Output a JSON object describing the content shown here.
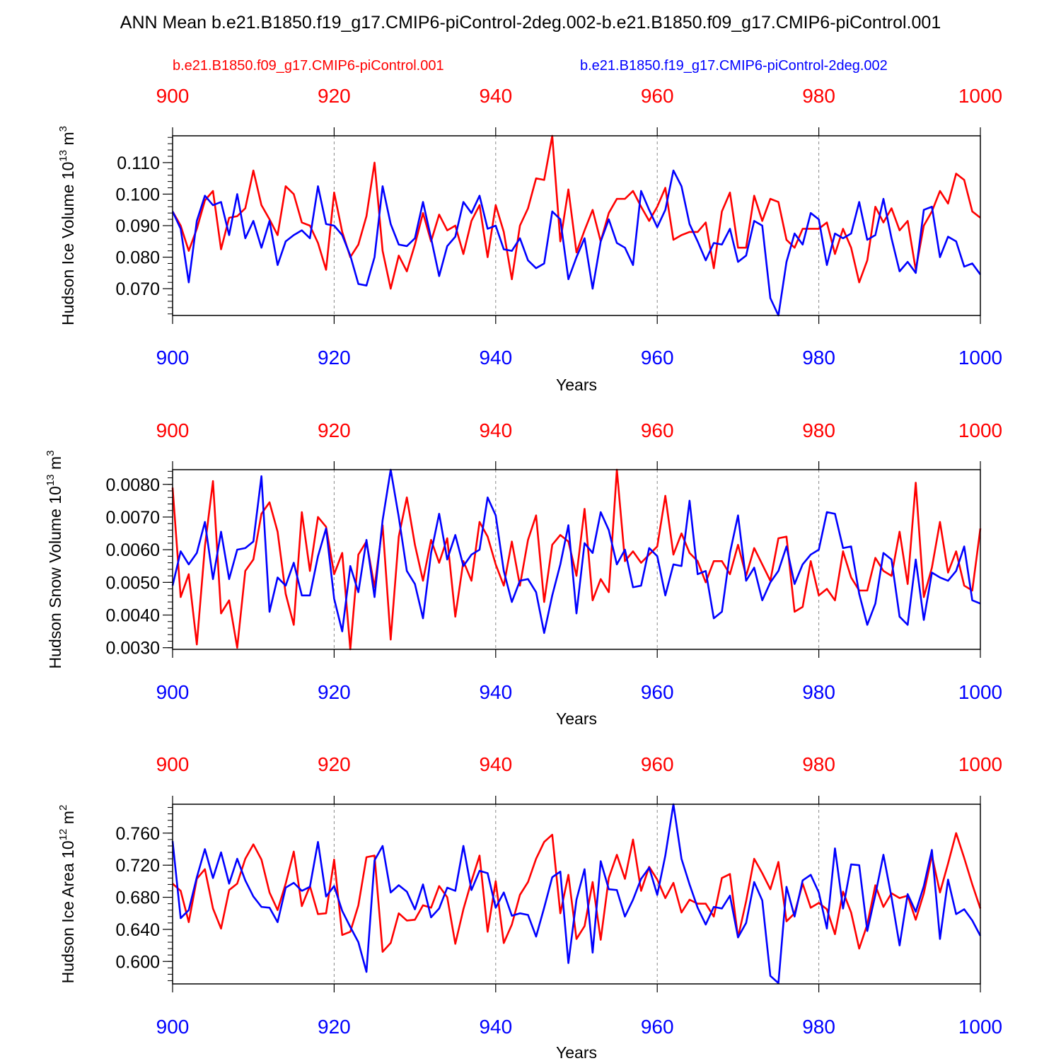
{
  "title": "ANN Mean b.e21.B1850.f19_g17.CMIP6-piControl-2deg.002-b.e21.B1850.f09_g17.CMIP6-piControl.001",
  "colors": {
    "red": "#ff0000",
    "blue": "#0000ff",
    "axis": "#000000",
    "grid": "#888888"
  },
  "legend": [
    {
      "label": "b.e21.B1850.f09_g17.CMIP6-piControl.001",
      "color": "#ff0000"
    },
    {
      "label": "b.e21.B1850.f19_g17.CMIP6-piControl-2deg.002",
      "color": "#0000ff"
    }
  ],
  "chart_data": [
    {
      "type": "line",
      "ylabel": "Hudson Ice Volume 10",
      "yexp": "13",
      "yunit": " m",
      "yunitexp": "3",
      "xlabel": "Years",
      "xlim": [
        900,
        1000
      ],
      "ylim": [
        0.0615,
        0.1185
      ],
      "yticks": [
        0.07,
        0.08,
        0.09,
        0.1,
        0.11
      ],
      "ytick_labels": [
        "0.070",
        "0.080",
        "0.090",
        "0.100",
        "0.110"
      ],
      "xticks": [
        900,
        920,
        940,
        960,
        980,
        1000
      ],
      "xtick_labels": [
        "900",
        "920",
        "940",
        "960",
        "980",
        "1000"
      ],
      "series": [
        {
          "name": "b.e21.B1850.f09_g17.CMIP6-piControl.001",
          "color": "#ff0000",
          "x_start": 900,
          "values": [
            0.0945,
            0.09,
            0.082,
            0.089,
            0.098,
            0.101,
            0.0825,
            0.0925,
            0.093,
            0.0955,
            0.1075,
            0.0965,
            0.092,
            0.087,
            0.1025,
            0.1,
            0.091,
            0.09,
            0.0845,
            0.076,
            0.1005,
            0.088,
            0.08,
            0.084,
            0.093,
            0.11,
            0.082,
            0.07,
            0.0805,
            0.0755,
            0.084,
            0.094,
            0.085,
            0.0935,
            0.0885,
            0.09,
            0.081,
            0.0915,
            0.0965,
            0.08,
            0.0965,
            0.088,
            0.073,
            0.09,
            0.0955,
            0.105,
            0.1045,
            0.1185,
            0.085,
            0.1015,
            0.0815,
            0.0885,
            0.095,
            0.085,
            0.094,
            0.0985,
            0.0985,
            0.101,
            0.096,
            0.0915,
            0.096,
            0.102,
            0.0855,
            0.087,
            0.088,
            0.088,
            0.091,
            0.0765,
            0.0945,
            0.1005,
            0.083,
            0.083,
            0.0995,
            0.0915,
            0.0985,
            0.0975,
            0.0855,
            0.083,
            0.089,
            0.089,
            0.089,
            0.091,
            0.081,
            0.089,
            0.083,
            0.072,
            0.079,
            0.096,
            0.091,
            0.0955,
            0.0885,
            0.0915,
            0.076,
            0.09,
            0.0945,
            0.101,
            0.097,
            0.1065,
            0.1045,
            0.0945,
            0.0925
          ]
        },
        {
          "name": "b.e21.B1850.f19_g17.CMIP6-piControl-2deg.002",
          "color": "#0000ff",
          "x_start": 900,
          "values": [
            0.0945,
            0.089,
            0.072,
            0.0915,
            0.0995,
            0.0965,
            0.0975,
            0.087,
            0.1,
            0.086,
            0.0915,
            0.083,
            0.0915,
            0.0775,
            0.085,
            0.087,
            0.0885,
            0.086,
            0.1025,
            0.0905,
            0.09,
            0.087,
            0.0805,
            0.0715,
            0.071,
            0.08,
            0.1025,
            0.0905,
            0.084,
            0.0835,
            0.086,
            0.0975,
            0.086,
            0.074,
            0.0835,
            0.0865,
            0.0975,
            0.094,
            0.0995,
            0.089,
            0.09,
            0.0825,
            0.082,
            0.086,
            0.079,
            0.0765,
            0.078,
            0.0945,
            0.092,
            0.073,
            0.08,
            0.086,
            0.07,
            0.085,
            0.092,
            0.0845,
            0.083,
            0.0775,
            0.101,
            0.095,
            0.0895,
            0.095,
            0.1075,
            0.1025,
            0.0905,
            0.085,
            0.079,
            0.0845,
            0.084,
            0.089,
            0.0785,
            0.0805,
            0.0915,
            0.09,
            0.067,
            0.0615,
            0.0785,
            0.0875,
            0.084,
            0.094,
            0.092,
            0.0775,
            0.0875,
            0.086,
            0.0875,
            0.0975,
            0.0855,
            0.087,
            0.0985,
            0.086,
            0.0755,
            0.0785,
            0.075,
            0.095,
            0.096,
            0.08,
            0.0865,
            0.085,
            0.077,
            0.078,
            0.0745
          ]
        }
      ]
    },
    {
      "type": "line",
      "ylabel": "Hudson Snow Volume 10",
      "yexp": "13",
      "yunit": " m",
      "yunitexp": "3",
      "xlabel": "Years",
      "xlim": [
        900,
        1000
      ],
      "ylim": [
        0.00295,
        0.00845
      ],
      "yticks": [
        0.003,
        0.004,
        0.005,
        0.006,
        0.007,
        0.008
      ],
      "ytick_labels": [
        "0.0030",
        "0.0040",
        "0.0050",
        "0.0060",
        "0.0070",
        "0.0080"
      ],
      "xticks": [
        900,
        920,
        940,
        960,
        980,
        1000
      ],
      "xtick_labels": [
        "900",
        "920",
        "940",
        "960",
        "980",
        "1000"
      ],
      "series": [
        {
          "name": "b.e21.B1850.f09_g17.CMIP6-piControl.001",
          "color": "#ff0000",
          "x_start": 900,
          "values": [
            0.0079,
            0.00455,
            0.00525,
            0.0031,
            0.0061,
            0.0081,
            0.00405,
            0.00445,
            0.003,
            0.00535,
            0.0057,
            0.0071,
            0.00745,
            0.00655,
            0.00465,
            0.0037,
            0.00715,
            0.00535,
            0.007,
            0.0067,
            0.00525,
            0.0059,
            0.00295,
            0.00585,
            0.00625,
            0.00485,
            0.00675,
            0.00325,
            0.0064,
            0.0076,
            0.00615,
            0.00505,
            0.0063,
            0.0056,
            0.00635,
            0.00395,
            0.00565,
            0.00505,
            0.00685,
            0.0064,
            0.00555,
            0.0049,
            0.00625,
            0.0049,
            0.0063,
            0.00705,
            0.0044,
            0.00615,
            0.00645,
            0.00625,
            0.0052,
            0.00725,
            0.00445,
            0.0051,
            0.0047,
            0.00845,
            0.00565,
            0.00595,
            0.0056,
            0.00585,
            0.0061,
            0.00765,
            0.00585,
            0.0065,
            0.0059,
            0.00565,
            0.005,
            0.00565,
            0.00565,
            0.00525,
            0.00615,
            0.0052,
            0.00605,
            0.00555,
            0.00505,
            0.00635,
            0.0064,
            0.0041,
            0.00425,
            0.00565,
            0.0046,
            0.0048,
            0.00445,
            0.00595,
            0.00515,
            0.00475,
            0.00475,
            0.00575,
            0.00535,
            0.0052,
            0.00655,
            0.00495,
            0.00805,
            0.00455,
            0.00545,
            0.00685,
            0.0053,
            0.00595,
            0.0049,
            0.00475,
            0.00665
          ]
        },
        {
          "name": "b.e21.B1850.f19_g17.CMIP6-piControl-2deg.002",
          "color": "#0000ff",
          "x_start": 900,
          "values": [
            0.0049,
            0.00595,
            0.00555,
            0.0059,
            0.00685,
            0.0051,
            0.00655,
            0.0051,
            0.006,
            0.00605,
            0.00625,
            0.00825,
            0.0041,
            0.00515,
            0.0049,
            0.0056,
            0.0046,
            0.0046,
            0.0058,
            0.00665,
            0.0045,
            0.0035,
            0.0055,
            0.0047,
            0.0063,
            0.00455,
            0.0069,
            0.00845,
            0.007,
            0.00535,
            0.00495,
            0.0039,
            0.0059,
            0.0071,
            0.0057,
            0.00645,
            0.0055,
            0.00585,
            0.006,
            0.0076,
            0.00705,
            0.00535,
            0.0044,
            0.00505,
            0.0051,
            0.0047,
            0.00345,
            0.0046,
            0.00555,
            0.00675,
            0.00405,
            0.0062,
            0.0059,
            0.00715,
            0.0066,
            0.00555,
            0.006,
            0.00485,
            0.0049,
            0.00605,
            0.0058,
            0.0046,
            0.00555,
            0.0055,
            0.0075,
            0.00525,
            0.00535,
            0.0039,
            0.0041,
            0.0059,
            0.00705,
            0.00505,
            0.00545,
            0.00445,
            0.005,
            0.00535,
            0.0061,
            0.00495,
            0.00555,
            0.00585,
            0.006,
            0.00715,
            0.0071,
            0.00605,
            0.0061,
            0.00465,
            0.0037,
            0.00435,
            0.0059,
            0.0057,
            0.00395,
            0.0037,
            0.0057,
            0.00385,
            0.0053,
            0.00515,
            0.00505,
            0.00535,
            0.0061,
            0.00445,
            0.00435
          ]
        }
      ]
    },
    {
      "type": "line",
      "ylabel": "Hudson Ice Area 10",
      "yexp": "12",
      "yunit": " m",
      "yunitexp": "2",
      "xlabel": "Years",
      "xlim": [
        900,
        1000
      ],
      "ylim": [
        0.572,
        0.796
      ],
      "yticks": [
        0.6,
        0.64,
        0.68,
        0.72,
        0.76
      ],
      "ytick_labels": [
        "0.600",
        "0.640",
        "0.680",
        "0.720",
        "0.760"
      ],
      "xticks": [
        900,
        920,
        940,
        960,
        980,
        1000
      ],
      "xtick_labels": [
        "900",
        "920",
        "940",
        "960",
        "980",
        "1000"
      ],
      "series": [
        {
          "name": "b.e21.B1850.f09_g17.CMIP6-piControl.001",
          "color": "#ff0000",
          "x_start": 900,
          "values": [
            0.697,
            0.688,
            0.649,
            0.703,
            0.715,
            0.666,
            0.641,
            0.689,
            0.697,
            0.728,
            0.746,
            0.727,
            0.686,
            0.664,
            0.697,
            0.737,
            0.669,
            0.694,
            0.659,
            0.66,
            0.727,
            0.633,
            0.637,
            0.67,
            0.73,
            0.732,
            0.612,
            0.623,
            0.66,
            0.651,
            0.652,
            0.67,
            0.667,
            0.694,
            0.68,
            0.622,
            0.665,
            0.7,
            0.732,
            0.637,
            0.7,
            0.623,
            0.646,
            0.683,
            0.699,
            0.728,
            0.749,
            0.758,
            0.66,
            0.708,
            0.628,
            0.644,
            0.699,
            0.627,
            0.704,
            0.733,
            0.703,
            0.752,
            0.688,
            0.718,
            0.702,
            0.679,
            0.698,
            0.661,
            0.677,
            0.672,
            0.672,
            0.656,
            0.704,
            0.709,
            0.63,
            0.675,
            0.728,
            0.71,
            0.69,
            0.724,
            0.65,
            0.66,
            0.697,
            0.667,
            0.673,
            0.665,
            0.634,
            0.687,
            0.661,
            0.616,
            0.646,
            0.695,
            0.668,
            0.685,
            0.679,
            0.682,
            0.652,
            0.685,
            0.732,
            0.686,
            0.722,
            0.76,
            0.729,
            0.696,
            0.666
          ]
        },
        {
          "name": "b.e21.B1850.f19_g17.CMIP6-piControl-2deg.002",
          "color": "#0000ff",
          "x_start": 900,
          "values": [
            0.75,
            0.654,
            0.664,
            0.705,
            0.74,
            0.704,
            0.736,
            0.697,
            0.728,
            0.701,
            0.681,
            0.668,
            0.667,
            0.649,
            0.692,
            0.698,
            0.688,
            0.693,
            0.749,
            0.681,
            0.694,
            0.663,
            0.643,
            0.624,
            0.587,
            0.726,
            0.744,
            0.686,
            0.695,
            0.687,
            0.665,
            0.696,
            0.655,
            0.666,
            0.692,
            0.688,
            0.744,
            0.689,
            0.713,
            0.71,
            0.667,
            0.686,
            0.657,
            0.66,
            0.658,
            0.631,
            0.667,
            0.705,
            0.712,
            0.598,
            0.677,
            0.715,
            0.611,
            0.725,
            0.69,
            0.689,
            0.656,
            0.677,
            0.703,
            0.717,
            0.683,
            0.732,
            0.796,
            0.728,
            0.696,
            0.667,
            0.646,
            0.668,
            0.666,
            0.682,
            0.63,
            0.648,
            0.699,
            0.676,
            0.582,
            0.573,
            0.693,
            0.656,
            0.701,
            0.708,
            0.686,
            0.641,
            0.741,
            0.666,
            0.721,
            0.72,
            0.638,
            0.683,
            0.733,
            0.68,
            0.62,
            0.684,
            0.662,
            0.694,
            0.739,
            0.628,
            0.702,
            0.659,
            0.665,
            0.651,
            0.632
          ]
        }
      ]
    }
  ]
}
